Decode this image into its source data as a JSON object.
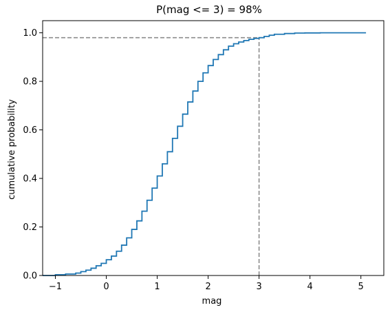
{
  "chart_data": {
    "type": "line",
    "title": "P(mag <= 3) = 98%",
    "xlabel": "mag",
    "ylabel": "cumulative probability",
    "xlim": [
      -1.25,
      5.45
    ],
    "ylim": [
      0,
      1.05
    ],
    "xticks": [
      -1,
      0,
      1,
      2,
      3,
      4,
      5
    ],
    "yticks": [
      0.0,
      0.2,
      0.4,
      0.6,
      0.8,
      1.0
    ],
    "xtick_labels": [
      "−1",
      "0",
      "1",
      "2",
      "3",
      "4",
      "5"
    ],
    "ytick_labels": [
      "0.0",
      "0.2",
      "0.4",
      "0.6",
      "0.8",
      "1.0"
    ],
    "grid": false,
    "legend": false,
    "colors": {
      "line": "#1f77b4",
      "reference": "#8c8c8c"
    },
    "reference_lines": [
      {
        "orientation": "horizontal",
        "y": 0.98,
        "x_from": -1.25,
        "x_to": 3
      },
      {
        "orientation": "vertical",
        "x": 3,
        "y_from": 0,
        "y_to": 0.98
      }
    ],
    "series": [
      {
        "style": "step",
        "x": [
          -1.25,
          -1.0,
          -0.8,
          -0.6,
          -0.5,
          -0.4,
          -0.3,
          -0.2,
          -0.1,
          0.0,
          0.1,
          0.2,
          0.3,
          0.4,
          0.5,
          0.6,
          0.7,
          0.8,
          0.9,
          1.0,
          1.1,
          1.2,
          1.3,
          1.4,
          1.5,
          1.6,
          1.7,
          1.8,
          1.9,
          2.0,
          2.1,
          2.2,
          2.3,
          2.4,
          2.5,
          2.6,
          2.7,
          2.8,
          2.9,
          3.0,
          3.1,
          3.2,
          3.3,
          3.5,
          3.7,
          3.9,
          4.2,
          5.1
        ],
        "y": [
          0.0,
          0.003,
          0.006,
          0.01,
          0.016,
          0.022,
          0.03,
          0.04,
          0.05,
          0.065,
          0.08,
          0.1,
          0.125,
          0.155,
          0.19,
          0.225,
          0.265,
          0.31,
          0.36,
          0.41,
          0.46,
          0.51,
          0.565,
          0.615,
          0.665,
          0.715,
          0.76,
          0.8,
          0.835,
          0.865,
          0.89,
          0.91,
          0.93,
          0.945,
          0.955,
          0.962,
          0.968,
          0.973,
          0.977,
          0.98,
          0.985,
          0.99,
          0.994,
          0.997,
          0.999,
          0.9995,
          1.0,
          1.0
        ]
      }
    ]
  }
}
